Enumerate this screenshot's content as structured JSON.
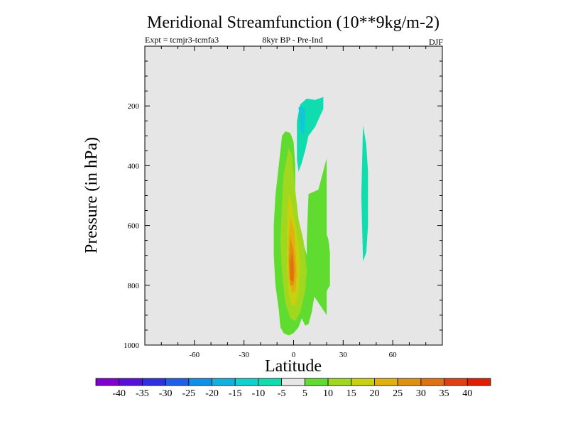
{
  "chart_data": {
    "type": "contour",
    "title": "Meridional Streamfunction (10**9kg/m-2)",
    "subtitle_left": "Expt = tcmjr3-tcmfa3",
    "subtitle_center": "8kyr BP - Pre-Ind",
    "subtitle_right": "DJF",
    "xlabel": "Latitude",
    "ylabel": "Pressure (in hPa)",
    "xlim": [
      -90,
      90
    ],
    "ylim": [
      0,
      1000
    ],
    "y_inverted": true,
    "x_ticks": [
      -60,
      -30,
      0,
      30,
      60
    ],
    "x_tick_labels": [
      "-60",
      "-30",
      "0",
      "30",
      "60"
    ],
    "y_ticks": [
      200,
      400,
      600,
      800,
      1000
    ],
    "y_tick_labels": [
      "200",
      "400",
      "600",
      "800",
      "1000"
    ],
    "background_color": "#e6e6e6",
    "colorbar": {
      "labels": [
        "-40",
        "-35",
        "-30",
        "-25",
        "-20",
        "-15",
        "-10",
        "-5",
        "5",
        "10",
        "15",
        "20",
        "25",
        "30",
        "35",
        "40"
      ],
      "colors": [
        "#8000d0",
        "#5a10d8",
        "#3030e0",
        "#2060e8",
        "#1090e8",
        "#10b0e0",
        "#10d0d0",
        "#10dcb0",
        "#e6e6e6",
        "#60dc30",
        "#a0d820",
        "#c8d010",
        "#e0b010",
        "#e09010",
        "#e07010",
        "#e04010",
        "#e01e00"
      ]
    },
    "regions": [
      {
        "name": "main-positive-cell",
        "level": "5 to 10",
        "color": "#60dc30",
        "lat": [
          -7,
          -5,
          -2,
          0,
          1,
          1,
          3,
          6,
          8,
          10,
          13,
          11,
          9,
          7,
          5,
          3,
          0,
          -3,
          -6,
          -8,
          -9,
          -11,
          -12,
          -12,
          -11,
          -9
        ],
        "p": [
          300,
          285,
          290,
          320,
          400,
          500,
          600,
          660,
          700,
          740,
          820,
          890,
          930,
          935,
          910,
          940,
          960,
          968,
          960,
          940,
          880,
          800,
          700,
          600,
          500,
          400
        ]
      },
      {
        "name": "cell-level-10",
        "level": "10 to 15",
        "color": "#a0d820",
        "lat": [
          -3,
          -1,
          1,
          3,
          6,
          8,
          7,
          4,
          1,
          -2,
          -5,
          -7,
          -8,
          -7,
          -6
        ],
        "p": [
          340,
          365,
          480,
          580,
          650,
          750,
          820,
          890,
          920,
          910,
          860,
          760,
          650,
          520,
          430
        ]
      },
      {
        "name": "cell-level-15",
        "level": "15 to 20",
        "color": "#c8d010",
        "lat": [
          -3,
          -1,
          1,
          3,
          4,
          3,
          1,
          -1,
          -3,
          -4,
          -4
        ],
        "p": [
          490,
          530,
          600,
          660,
          740,
          820,
          865,
          870,
          830,
          740,
          620
        ]
      },
      {
        "name": "cell-level-20",
        "level": "20 to 25",
        "color": "#e0b010",
        "lat": [
          -2,
          0,
          1,
          2,
          1,
          -1,
          -3,
          -3
        ],
        "p": [
          570,
          610,
          670,
          760,
          820,
          825,
          770,
          650
        ]
      },
      {
        "name": "cell-level-25",
        "level": "25 to 30",
        "color": "#e09010",
        "lat": [
          -2,
          0,
          1,
          0,
          -2,
          -3
        ],
        "p": [
          640,
          680,
          750,
          800,
          800,
          720
        ]
      },
      {
        "name": "cell-level-30",
        "level": "30 to 35",
        "color": "#e07010",
        "lat": [
          -1,
          0,
          0,
          -2,
          -2
        ],
        "p": [
          690,
          730,
          790,
          780,
          720
        ]
      },
      {
        "name": "upper-cell-north",
        "level": "5 to 10",
        "color": "#60dc30",
        "lat": [
          9,
          15,
          20,
          20,
          14,
          10,
          8,
          8
        ],
        "p": [
          495,
          480,
          375,
          900,
          850,
          820,
          780,
          650
        ]
      },
      {
        "name": "small-green-strip",
        "level": "5 to 10",
        "color": "#60dc30",
        "lat": [
          19,
          21,
          22,
          22,
          20,
          19
        ],
        "p": [
          615,
          645,
          690,
          800,
          820,
          700
        ]
      },
      {
        "name": "negative-upper-cell",
        "level": "-10 to -5",
        "color": "#10dcb0",
        "lat": [
          4,
          8,
          13,
          18,
          18,
          13,
          9,
          7,
          5,
          3,
          2,
          2
        ],
        "p": [
          195,
          175,
          180,
          170,
          210,
          270,
          300,
          350,
          390,
          420,
          380,
          250
        ]
      },
      {
        "name": "negative-upper-core",
        "level": "-15 to -10",
        "color": "#10c8d8",
        "lat": [
          3,
          5,
          7,
          7,
          6,
          4
        ],
        "p": [
          205,
          200,
          215,
          260,
          300,
          280
        ]
      },
      {
        "name": "negative-strip-north",
        "level": "-10 to -5",
        "color": "#10dcb0",
        "lat": [
          42,
          44,
          45,
          45,
          44,
          42,
          41
        ],
        "p": [
          265,
          330,
          420,
          600,
          690,
          720,
          500
        ]
      }
    ]
  }
}
